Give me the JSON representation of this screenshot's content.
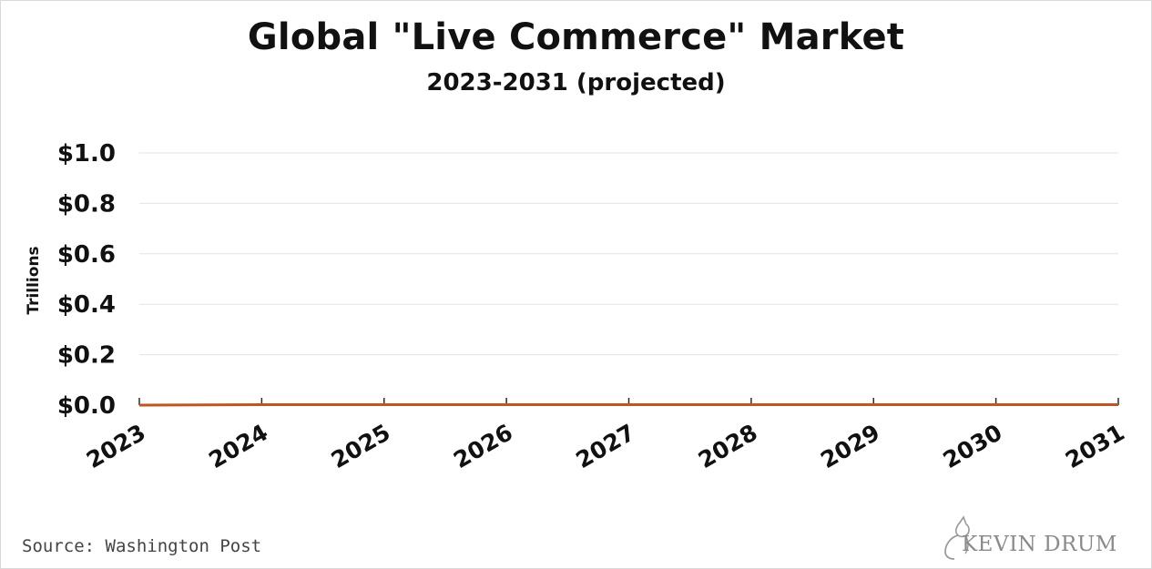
{
  "chart_data": {
    "type": "line",
    "title": "Global \"Live Commerce\" Market",
    "subtitle": "2023-2031 (projected)",
    "xlabel": "",
    "ylabel": "Trillions",
    "x": [
      "2023",
      "2024",
      "2025",
      "2026",
      "2027",
      "2028",
      "2029",
      "2030",
      "2031"
    ],
    "series": [
      {
        "values": [
          0.0,
          0.002,
          0.002,
          0.002,
          0.002,
          0.002,
          0.002,
          0.002,
          0.002
        ]
      }
    ],
    "yticks": [
      "$0.0",
      "$0.2",
      "$0.4",
      "$0.6",
      "$0.8",
      "$1.0"
    ],
    "ylim": [
      0,
      1.0
    ],
    "grid": true,
    "line_color": "#c0561f"
  },
  "footer": {
    "source": "Source:  Washington Post",
    "brand": "KEVIN DRUM"
  }
}
